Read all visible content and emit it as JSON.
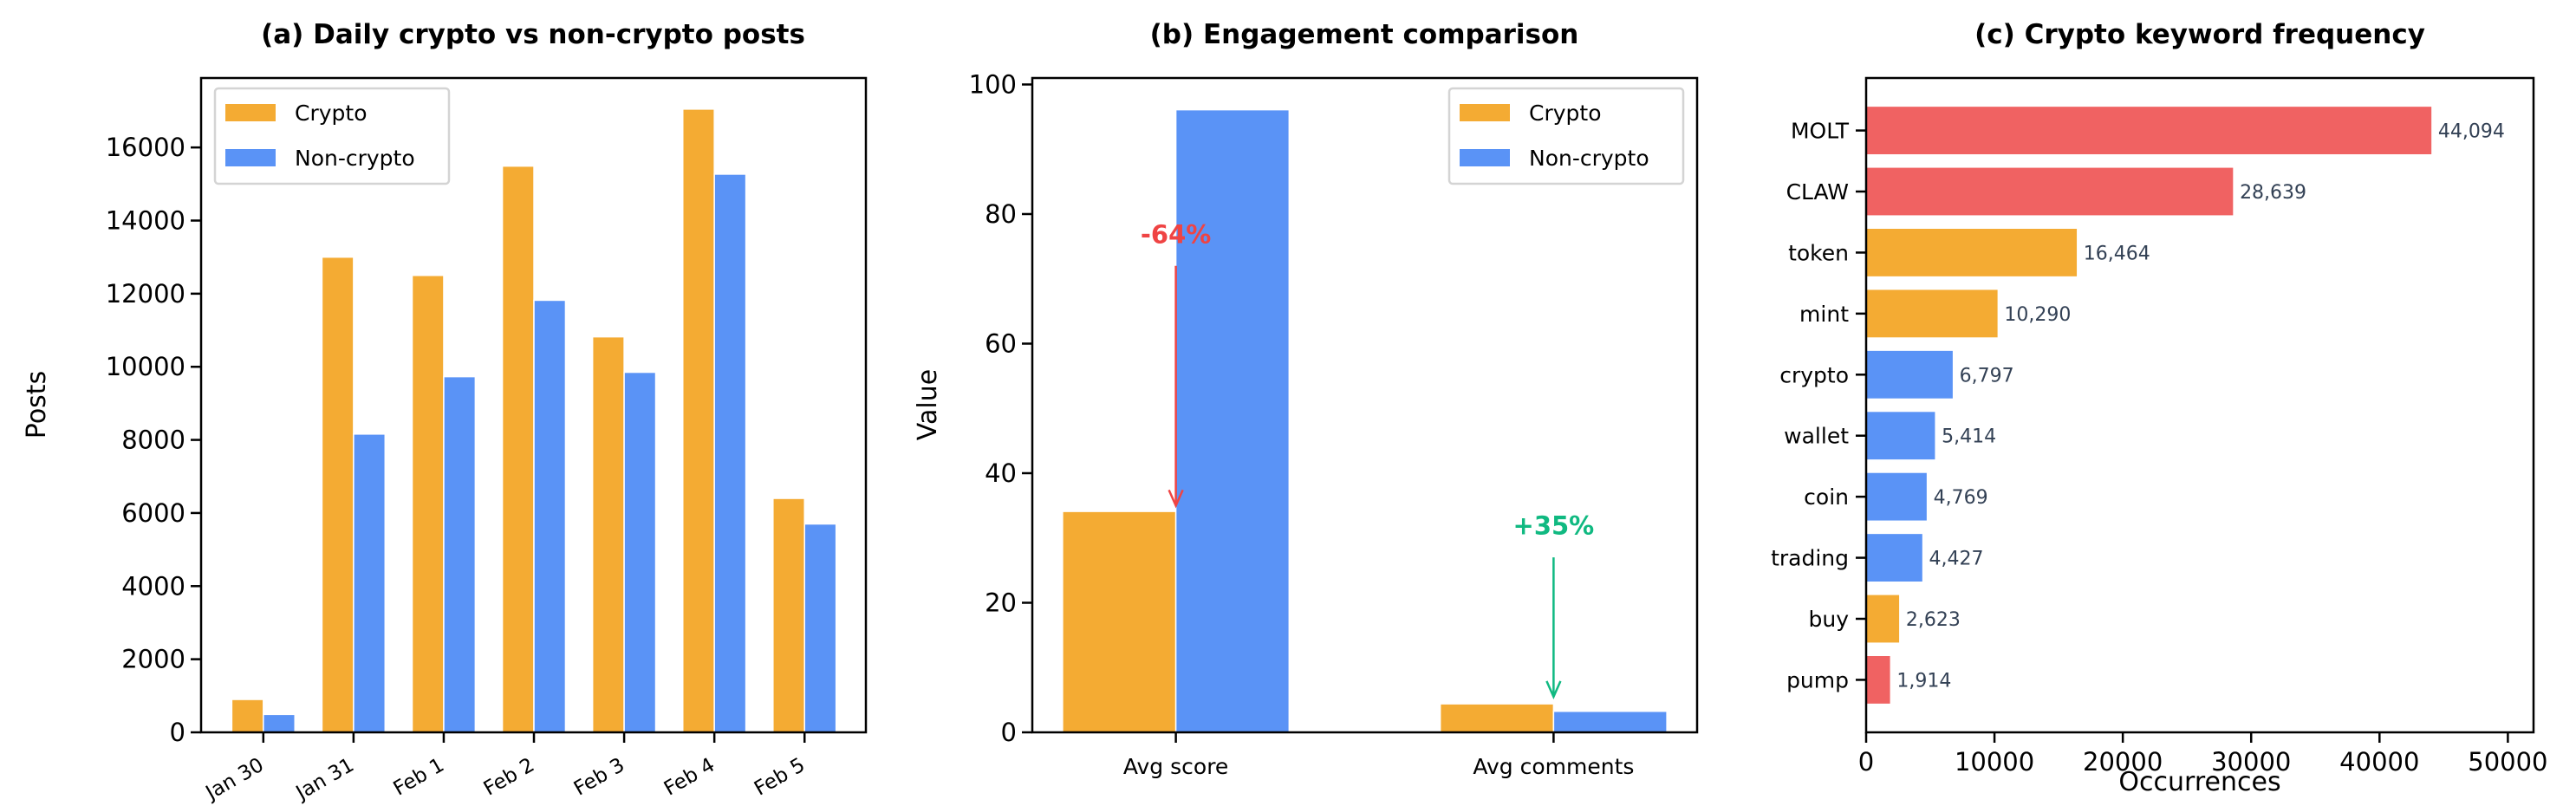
{
  "colors": {
    "crypto": "#F4AB33",
    "non_crypto": "#5A93F6",
    "highlight": "#F06262",
    "decrease": "#EF4444",
    "increase": "#10B981",
    "value_label": "#334155"
  },
  "chart_data": [
    {
      "type": "bar",
      "title": "(a) Daily crypto vs non-crypto posts",
      "xlabel": "",
      "ylabel": "Posts",
      "categories": [
        "Jan 30",
        "Jan 31",
        "Feb 1",
        "Feb 2",
        "Feb 3",
        "Feb 4",
        "Feb 5"
      ],
      "series": [
        {
          "name": "Crypto",
          "color": "crypto",
          "values": [
            900,
            13000,
            12500,
            15490,
            10820,
            17050,
            6400
          ]
        },
        {
          "name": "Non-crypto",
          "color": "non_crypto",
          "values": [
            490,
            8160,
            9730,
            11820,
            9850,
            15270,
            5700
          ]
        }
      ],
      "ylim": [
        0,
        17900
      ],
      "yticks": [
        0,
        2000,
        4000,
        6000,
        8000,
        10000,
        12000,
        14000,
        16000
      ],
      "legend": "top-left",
      "grid": false
    },
    {
      "type": "bar",
      "title": "(b) Engagement comparison",
      "xlabel": "",
      "ylabel": "Value",
      "categories": [
        "Avg score",
        "Avg comments"
      ],
      "series": [
        {
          "name": "Crypto",
          "color": "crypto",
          "values": [
            34.1,
            4.4
          ]
        },
        {
          "name": "Non-crypto",
          "color": "non_crypto",
          "values": [
            96.1,
            3.25
          ]
        }
      ],
      "ylim": [
        0,
        101
      ],
      "yticks": [
        0,
        20,
        40,
        60,
        80,
        100
      ],
      "legend": "top-right",
      "grid": false,
      "annotations": [
        {
          "text": "-64%",
          "category": "Avg score",
          "arrow_from": 72,
          "arrow_to": 35,
          "text_y": 75,
          "color": "decrease"
        },
        {
          "text": "+35%",
          "category": "Avg comments",
          "arrow_from": 27,
          "arrow_to": 5.5,
          "text_y": 30,
          "color": "increase"
        }
      ]
    },
    {
      "type": "bar",
      "orientation": "horizontal",
      "title": "(c) Crypto keyword frequency",
      "xlabel": "Occurrences",
      "ylabel": "",
      "categories": [
        "MOLT",
        "CLAW",
        "token",
        "mint",
        "crypto",
        "wallet",
        "coin",
        "trading",
        "buy",
        "pump"
      ],
      "values": [
        44094,
        28639,
        16464,
        10290,
        6797,
        5414,
        4769,
        4427,
        2623,
        1914
      ],
      "value_labels": [
        "44,094",
        "28,639",
        "16,464",
        "10,290",
        "6,797",
        "5,414",
        "4,769",
        "4,427",
        "2,623",
        "1,914"
      ],
      "bar_colors": [
        "highlight",
        "highlight",
        "crypto",
        "crypto",
        "non_crypto",
        "non_crypto",
        "non_crypto",
        "non_crypto",
        "crypto",
        "highlight"
      ],
      "xlim": [
        0,
        52000
      ],
      "xticks": [
        0,
        10000,
        20000,
        30000,
        40000,
        50000
      ],
      "grid": false
    }
  ]
}
